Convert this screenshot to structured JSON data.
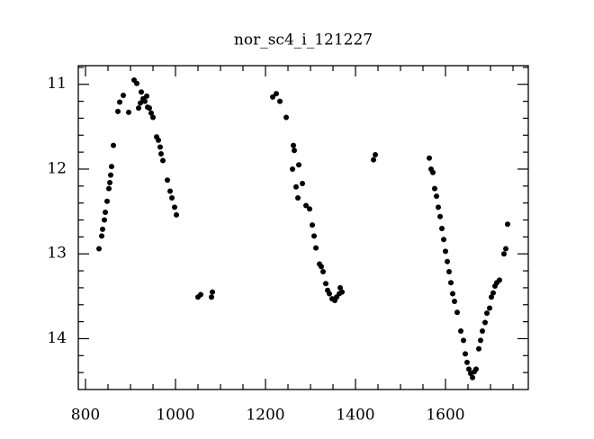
{
  "chart_data": {
    "type": "scatter",
    "title": "nor_sc4_i_121227",
    "x": [
      830,
      836,
      838,
      842,
      844,
      848,
      852,
      854,
      856,
      858,
      862,
      872,
      876,
      884,
      896,
      908,
      914,
      918,
      922,
      924,
      928,
      932,
      936,
      938,
      942,
      946,
      950,
      958,
      962,
      966,
      968,
      972,
      982,
      988,
      992,
      998,
      1002,
      1050,
      1056,
      1080,
      1082,
      1216,
      1224,
      1232,
      1246,
      1262,
      1264,
      1260,
      1268,
      1274,
      1272,
      1282,
      1290,
      1298,
      1304,
      1308,
      1312,
      1320,
      1324,
      1328,
      1334,
      1338,
      1342,
      1348,
      1354,
      1358,
      1364,
      1366,
      1370,
      1440,
      1444,
      1564,
      1568,
      1572,
      1576,
      1580,
      1584,
      1588,
      1592,
      1596,
      1600,
      1604,
      1608,
      1612,
      1616,
      1620,
      1626,
      1634,
      1640,
      1644,
      1648,
      1652,
      1656,
      1660,
      1664,
      1668,
      1674,
      1678,
      1682,
      1688,
      1692,
      1698,
      1702,
      1706,
      1710,
      1714,
      1720,
      1730,
      1734,
      1738
    ],
    "values": [
      12.94,
      12.79,
      12.71,
      12.6,
      12.51,
      12.38,
      12.23,
      12.16,
      12.07,
      11.97,
      11.72,
      11.32,
      11.21,
      11.13,
      11.33,
      10.95,
      10.99,
      11.28,
      11.22,
      11.09,
      11.17,
      11.2,
      11.14,
      11.27,
      11.28,
      11.34,
      11.39,
      11.62,
      11.66,
      11.74,
      11.82,
      11.9,
      12.13,
      12.26,
      12.34,
      12.45,
      12.54,
      13.51,
      13.48,
      13.51,
      13.45,
      11.15,
      11.11,
      11.2,
      11.39,
      11.72,
      11.78,
      12.0,
      12.21,
      11.95,
      12.34,
      12.17,
      12.43,
      12.47,
      12.66,
      12.79,
      12.93,
      13.12,
      13.15,
      13.21,
      13.35,
      13.43,
      13.47,
      13.53,
      13.55,
      13.51,
      13.47,
      13.4,
      13.45,
      11.89,
      11.83,
      11.87,
      12.0,
      12.04,
      12.23,
      12.32,
      12.45,
      12.56,
      12.7,
      12.83,
      12.97,
      13.09,
      13.21,
      13.34,
      13.47,
      13.56,
      13.69,
      13.91,
      14.02,
      14.18,
      14.28,
      14.36,
      14.41,
      14.46,
      14.39,
      14.36,
      14.12,
      14.02,
      13.91,
      13.81,
      13.7,
      13.64,
      13.51,
      13.46,
      13.38,
      13.34,
      13.31,
      13.0,
      12.94,
      12.65
    ],
    "color": "#000000",
    "xlim": [
      784,
      1784
    ],
    "xticks": [
      800,
      1000,
      1200,
      1400,
      1600
    ],
    "minor_xticks": [
      850,
      900,
      950,
      1050,
      1100,
      1150,
      1250,
      1300,
      1350,
      1450,
      1500,
      1550,
      1650,
      1700,
      1750
    ],
    "ylim": [
      10.78,
      14.6
    ],
    "yticks": [
      11,
      12,
      13,
      14
    ],
    "minor_yticks": [
      10.8,
      11.2,
      11.4,
      11.6,
      11.8,
      12.2,
      12.4,
      12.6,
      12.8,
      13.2,
      13.4,
      13.6,
      13.8,
      14.2,
      14.4
    ],
    "y_inverted": true
  }
}
